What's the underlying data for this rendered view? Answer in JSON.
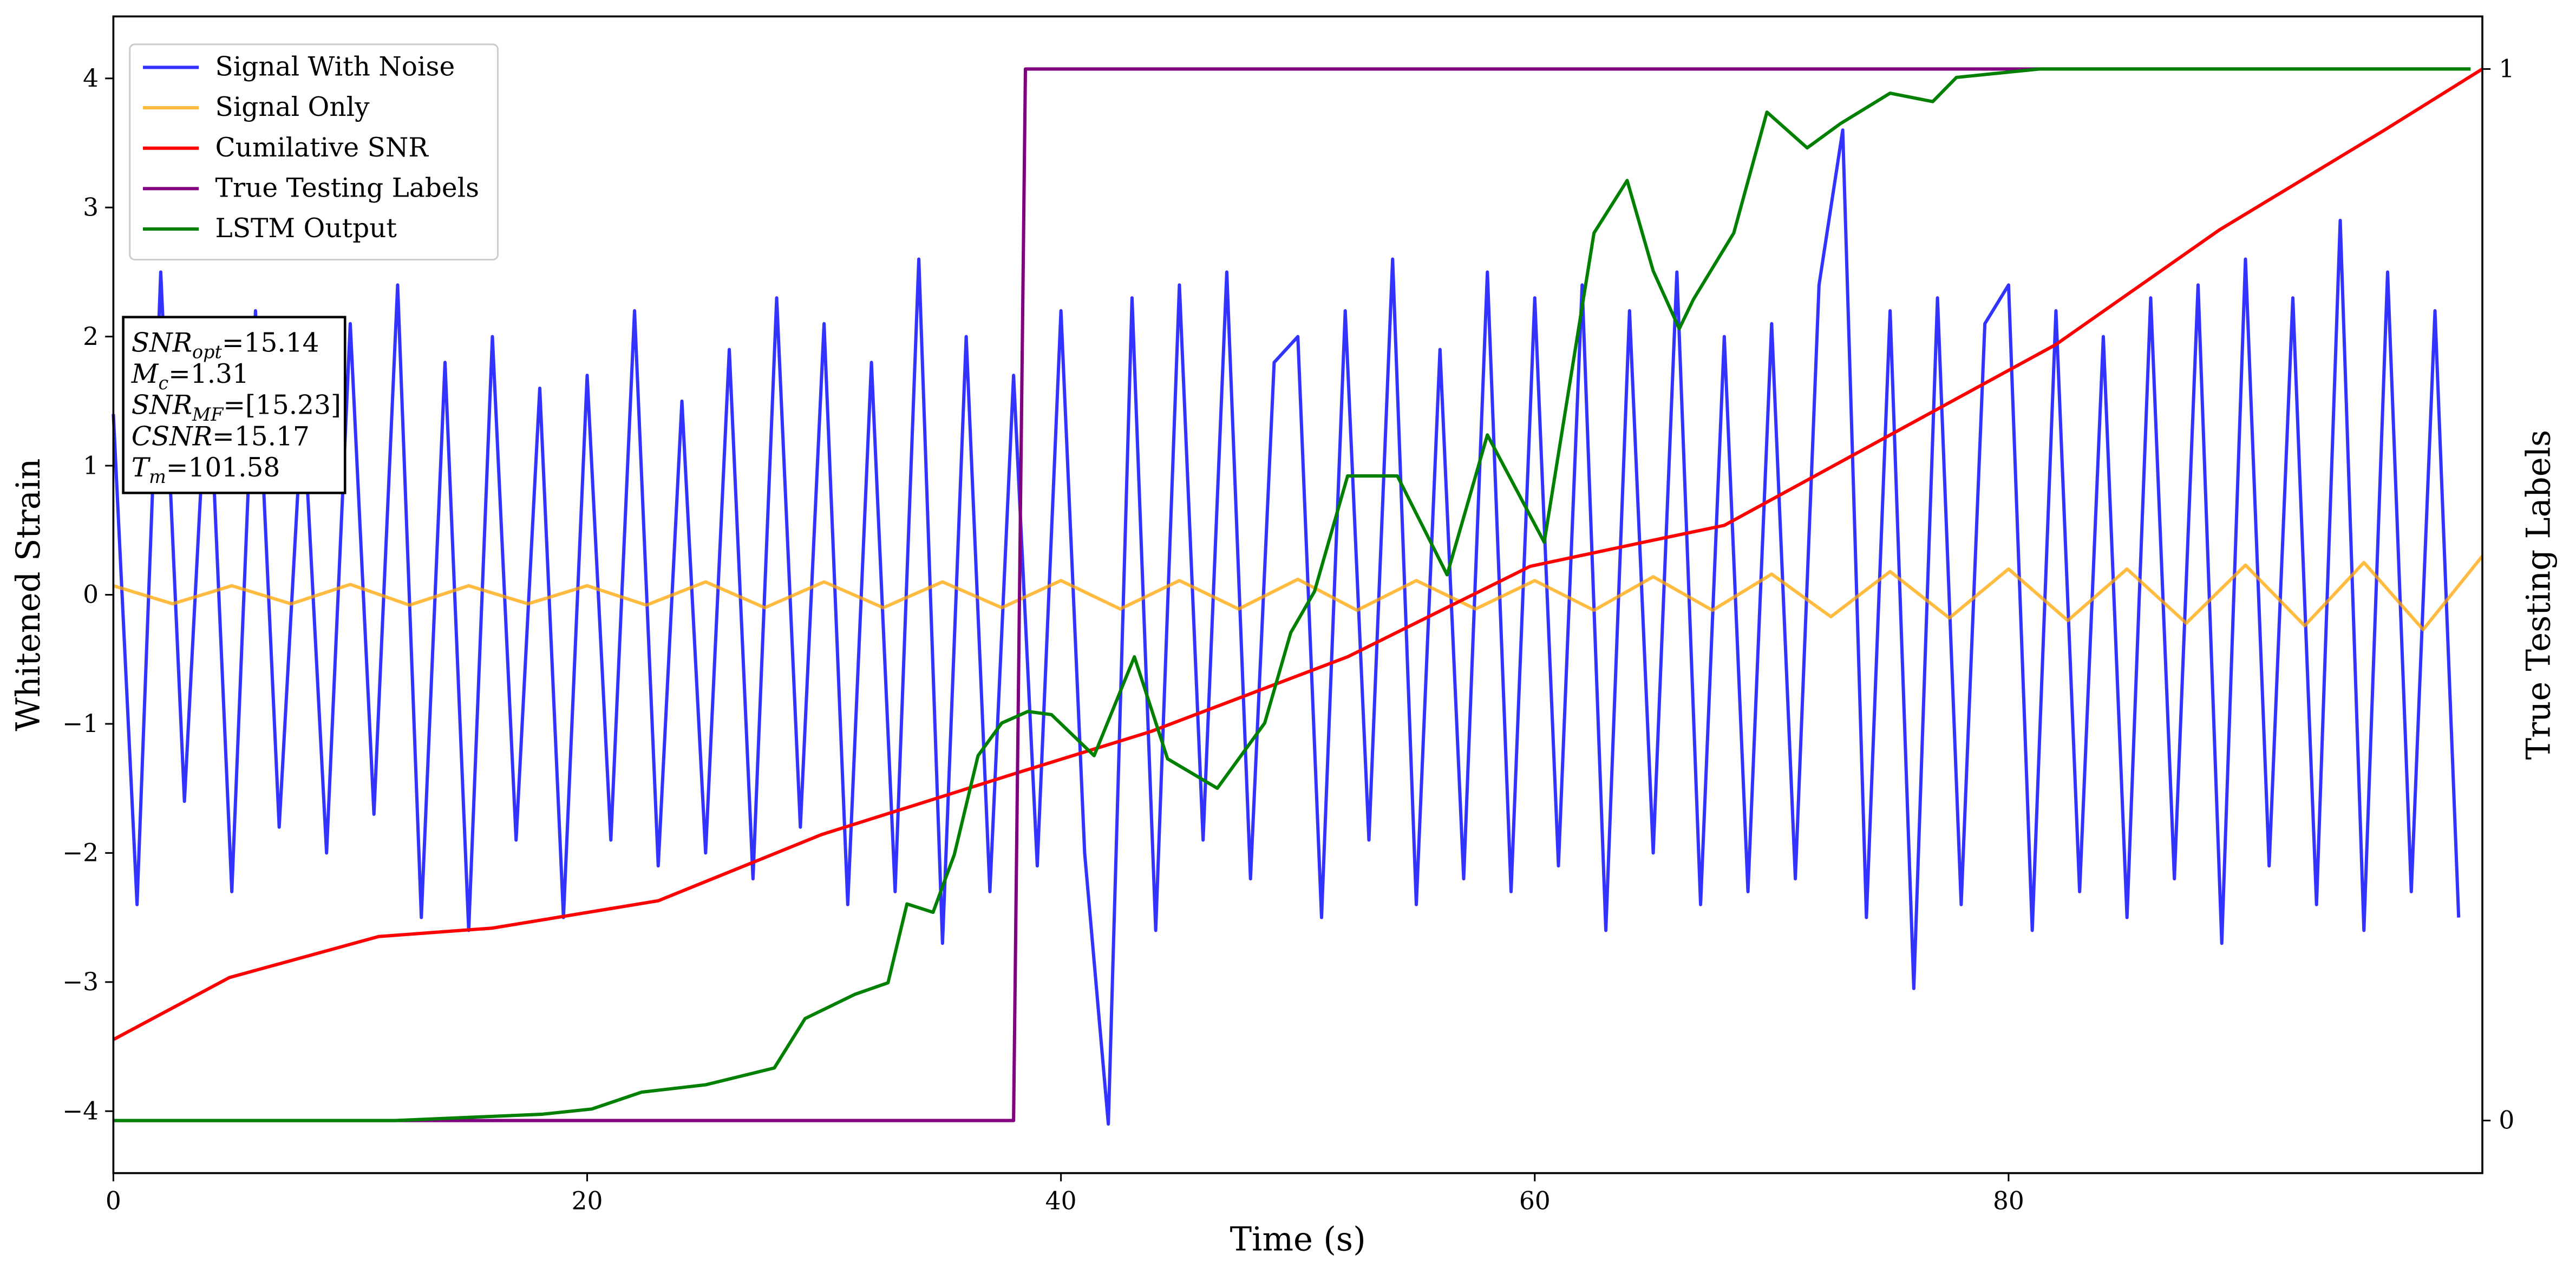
{
  "chart_data": {
    "type": "line",
    "xlabel": "Time (s)",
    "ylabel": "Whitened Strain",
    "y2label": "True Testing Labels",
    "xlim": [
      0,
      100
    ],
    "xticks": [
      0,
      20,
      40,
      60,
      80
    ],
    "ylim": [
      -4.48,
      4.48
    ],
    "yticks": [
      {
        "value": -4,
        "label": "−4"
      },
      {
        "value": -3,
        "label": "−3"
      },
      {
        "value": -2,
        "label": "−2"
      },
      {
        "value": -1,
        "label": "−1"
      },
      0,
      1,
      2,
      3,
      4
    ],
    "y2lim": [
      -0.05,
      1.05
    ],
    "y2ticks": [
      0,
      1
    ],
    "legend": "upper left",
    "annotations": [
      {
        "symbol": "SNR",
        "subscript": "opt",
        "text": "=15.14"
      },
      {
        "symbol": "M",
        "subscript": "c",
        "text": "=1.31"
      },
      {
        "symbol": "SNR",
        "subscript": "MF",
        "text": "=[15.23]"
      },
      {
        "symbol": "CSNR",
        "subscript": "",
        "text": "=15.17"
      },
      {
        "symbol": "T",
        "subscript": "m",
        "text": "=101.58"
      }
    ],
    "series": [
      {
        "name": "Signal With Noise",
        "color": "#0000ff",
        "opacity": 0.8,
        "x": [
          0,
          1,
          2,
          3,
          4,
          5,
          6,
          7,
          8,
          9,
          10,
          11,
          12,
          13,
          14,
          15,
          16,
          17,
          18,
          19,
          20,
          21,
          22,
          23,
          24,
          25,
          26,
          27,
          28,
          29,
          30,
          31,
          32,
          33,
          34,
          35,
          36,
          37,
          38,
          39,
          40,
          41,
          42,
          43,
          44,
          45,
          46,
          47,
          48,
          49,
          50,
          51,
          52,
          53,
          54,
          55,
          56,
          57,
          58,
          59,
          60,
          61,
          62,
          63,
          64,
          65,
          66,
          67,
          68,
          69,
          70,
          71,
          72,
          73,
          74,
          75,
          76,
          77,
          78,
          79,
          80,
          81,
          82,
          83,
          84,
          85,
          86,
          87,
          88,
          89,
          90,
          91,
          92,
          93,
          94,
          95,
          96,
          97,
          98,
          99
        ],
        "values": [
          1.4,
          -2.4,
          2.5,
          -1.6,
          1.9,
          -2.3,
          2.2,
          -1.8,
          1.5,
          -2.0,
          2.1,
          -1.7,
          2.4,
          -2.5,
          1.8,
          -2.6,
          2.0,
          -1.9,
          1.6,
          -2.5,
          1.7,
          -1.9,
          2.2,
          -2.1,
          1.5,
          -2.0,
          1.9,
          -2.2,
          2.3,
          -1.8,
          2.1,
          -2.4,
          1.8,
          -2.3,
          2.6,
          -2.7,
          2.0,
          -2.3,
          1.7,
          -2.1,
          2.2,
          -2.0,
          -4.1,
          2.3,
          -2.6,
          2.4,
          -1.9,
          2.5,
          -2.2,
          1.8,
          2.0,
          -2.5,
          2.2,
          -1.9,
          2.6,
          -2.4,
          1.9,
          -2.2,
          2.5,
          -2.3,
          2.3,
          -2.1,
          2.4,
          -2.6,
          2.2,
          -2.0,
          2.5,
          -2.4,
          2.0,
          -2.3,
          2.1,
          -2.2,
          2.4,
          3.6,
          -2.5,
          2.2,
          -3.05,
          2.3,
          -2.4,
          2.1,
          2.4,
          -2.6,
          2.2,
          -2.3,
          2.0,
          -2.5,
          2.3,
          -2.2,
          2.4,
          -2.7,
          2.6,
          -2.1,
          2.3,
          -2.4,
          2.9,
          -2.6,
          2.5,
          -2.3,
          2.2,
          -2.5
        ]
      },
      {
        "name": "Signal Only",
        "color": "#ffa500",
        "opacity": 0.75,
        "x": [
          0,
          2.5,
          5,
          7.5,
          10,
          12.5,
          15,
          17.5,
          20,
          22.5,
          25,
          27.5,
          30,
          32.5,
          35,
          37.5,
          40,
          42.5,
          45,
          47.5,
          50,
          52.5,
          55,
          57.5,
          60,
          62.5,
          65,
          67.5,
          70,
          72.5,
          75,
          77.5,
          80,
          82.5,
          85,
          87.5,
          90,
          92.5,
          95,
          97.5,
          100
        ],
        "values": [
          0.07,
          -0.07,
          0.07,
          -0.07,
          0.08,
          -0.08,
          0.07,
          -0.07,
          0.07,
          -0.08,
          0.1,
          -0.1,
          0.1,
          -0.1,
          0.1,
          -0.1,
          0.11,
          -0.11,
          0.11,
          -0.11,
          0.12,
          -0.12,
          0.11,
          -0.11,
          0.11,
          -0.12,
          0.14,
          -0.12,
          0.16,
          -0.17,
          0.18,
          -0.18,
          0.2,
          -0.2,
          0.2,
          -0.22,
          0.23,
          -0.24,
          0.25,
          -0.27,
          0.3
        ]
      },
      {
        "name": "Cumilative SNR",
        "color": "#ff0000",
        "axis": "y2",
        "x": [
          0,
          4.9,
          11.2,
          16,
          23,
          29.9,
          38.2,
          43.8,
          52.1,
          59.8,
          64.6,
          68,
          75,
          82,
          88.9,
          95.8,
          100
        ],
        "values": [
          0.077,
          0.136,
          0.175,
          0.183,
          0.209,
          0.272,
          0.331,
          0.37,
          0.441,
          0.527,
          0.55,
          0.566,
          0.652,
          0.738,
          0.847,
          0.941,
          1.0
        ]
      },
      {
        "name": "True Testing Labels",
        "color": "#800080",
        "axis": "y2",
        "x": [
          0,
          38,
          38.5,
          99.5
        ],
        "values": [
          0,
          0,
          1,
          1
        ]
      },
      {
        "name": "LSTM Output",
        "color": "#008000",
        "axis": "y2",
        "x": [
          0,
          11.9,
          18.1,
          20.2,
          22.3,
          25,
          27.9,
          29.2,
          31.3,
          32.7,
          33.5,
          34.6,
          35.5,
          36.5,
          37.5,
          38.6,
          39.6,
          41.4,
          43.1,
          44.5,
          46.6,
          48.6,
          49.7,
          50.7,
          52.1,
          54.2,
          56.3,
          58,
          60.4,
          62.5,
          63.9,
          65,
          66.1,
          66.7,
          68.4,
          69.8,
          71.5,
          72.9,
          75,
          76.8,
          77.8,
          81.3,
          99.5
        ],
        "values": [
          0,
          0,
          0.006,
          0.011,
          0.027,
          0.034,
          0.05,
          0.097,
          0.12,
          0.131,
          0.206,
          0.198,
          0.253,
          0.347,
          0.378,
          0.389,
          0.386,
          0.347,
          0.441,
          0.344,
          0.316,
          0.378,
          0.464,
          0.503,
          0.613,
          0.613,
          0.519,
          0.652,
          0.55,
          0.844,
          0.894,
          0.808,
          0.753,
          0.781,
          0.844,
          0.959,
          0.925,
          0.948,
          0.977,
          0.969,
          0.992,
          1.0,
          1.0
        ]
      }
    ]
  }
}
